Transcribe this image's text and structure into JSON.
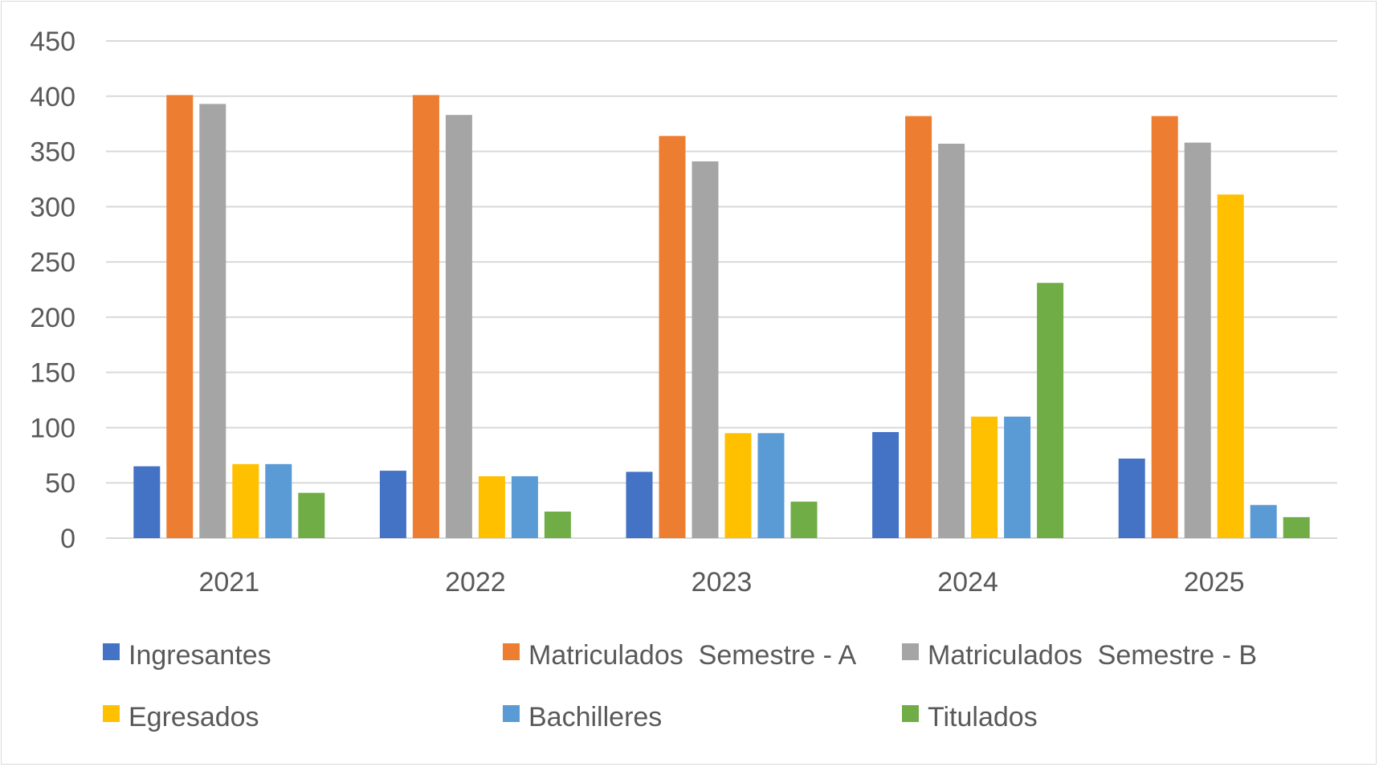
{
  "chart_data": {
    "type": "bar",
    "title": "",
    "xlabel": "",
    "ylabel": "",
    "ylim": [
      0,
      450
    ],
    "yticks": [
      0,
      50,
      100,
      150,
      200,
      250,
      300,
      350,
      400,
      450
    ],
    "categories": [
      "2021",
      "2022",
      "2023",
      "2024",
      "2025"
    ],
    "grid": true,
    "legend_position": "bottom",
    "series": [
      {
        "name": "Ingresantes",
        "color": "#4472c4",
        "values": [
          65,
          61,
          60,
          96,
          72
        ]
      },
      {
        "name": "Matriculados  Semestre - A",
        "color": "#ed7d31",
        "values": [
          401,
          401,
          364,
          382,
          382
        ]
      },
      {
        "name": "Matriculados  Semestre - B",
        "color": "#a5a5a5",
        "values": [
          393,
          383,
          341,
          357,
          358
        ]
      },
      {
        "name": "Egresados",
        "color": "#ffc000",
        "values": [
          67,
          56,
          95,
          110,
          311
        ]
      },
      {
        "name": "Bachilleres",
        "color": "#5b9bd5",
        "values": [
          67,
          56,
          95,
          110,
          30
        ]
      },
      {
        "name": "Titulados",
        "color": "#70ad47",
        "values": [
          41,
          24,
          33,
          231,
          19
        ]
      }
    ]
  }
}
